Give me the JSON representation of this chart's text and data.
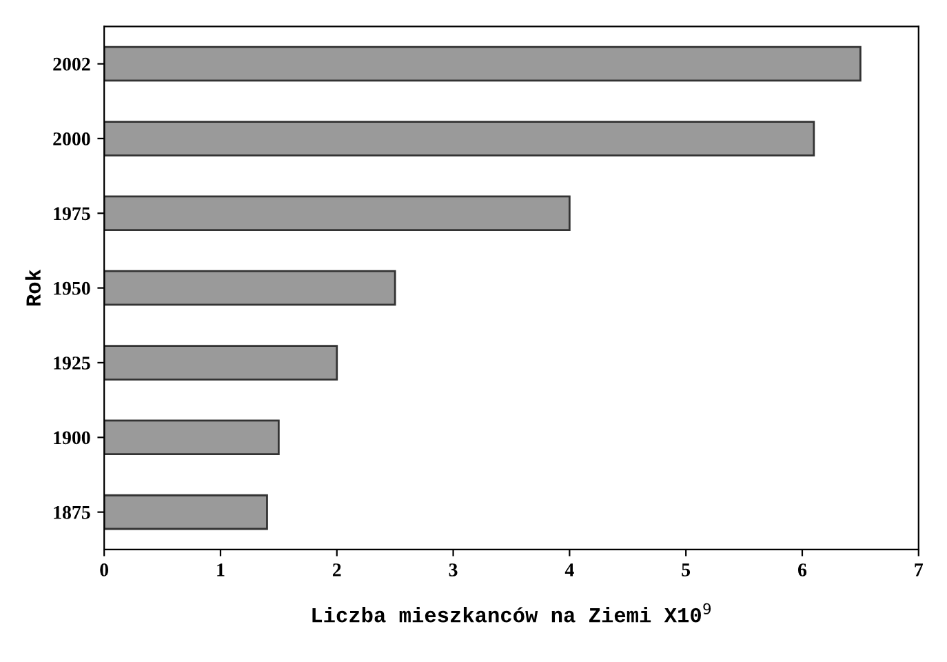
{
  "chart_data": {
    "type": "bar",
    "orientation": "horizontal",
    "xlabel": "Liczba mieszkanców na Ziemi X10$^{9}$",
    "ylabel": "Rok",
    "categories": [
      "2002",
      "2000",
      "1975",
      "1950",
      "1925",
      "1900",
      "1875"
    ],
    "values": [
      6.5,
      6.1,
      4.0,
      2.5,
      2.0,
      1.5,
      1.4
    ],
    "color": "#9a9a9a",
    "xlim": [
      0,
      7
    ],
    "xticks": [
      0,
      1,
      2,
      3,
      4,
      5,
      6,
      7
    ],
    "grid": false,
    "legend": false
  }
}
